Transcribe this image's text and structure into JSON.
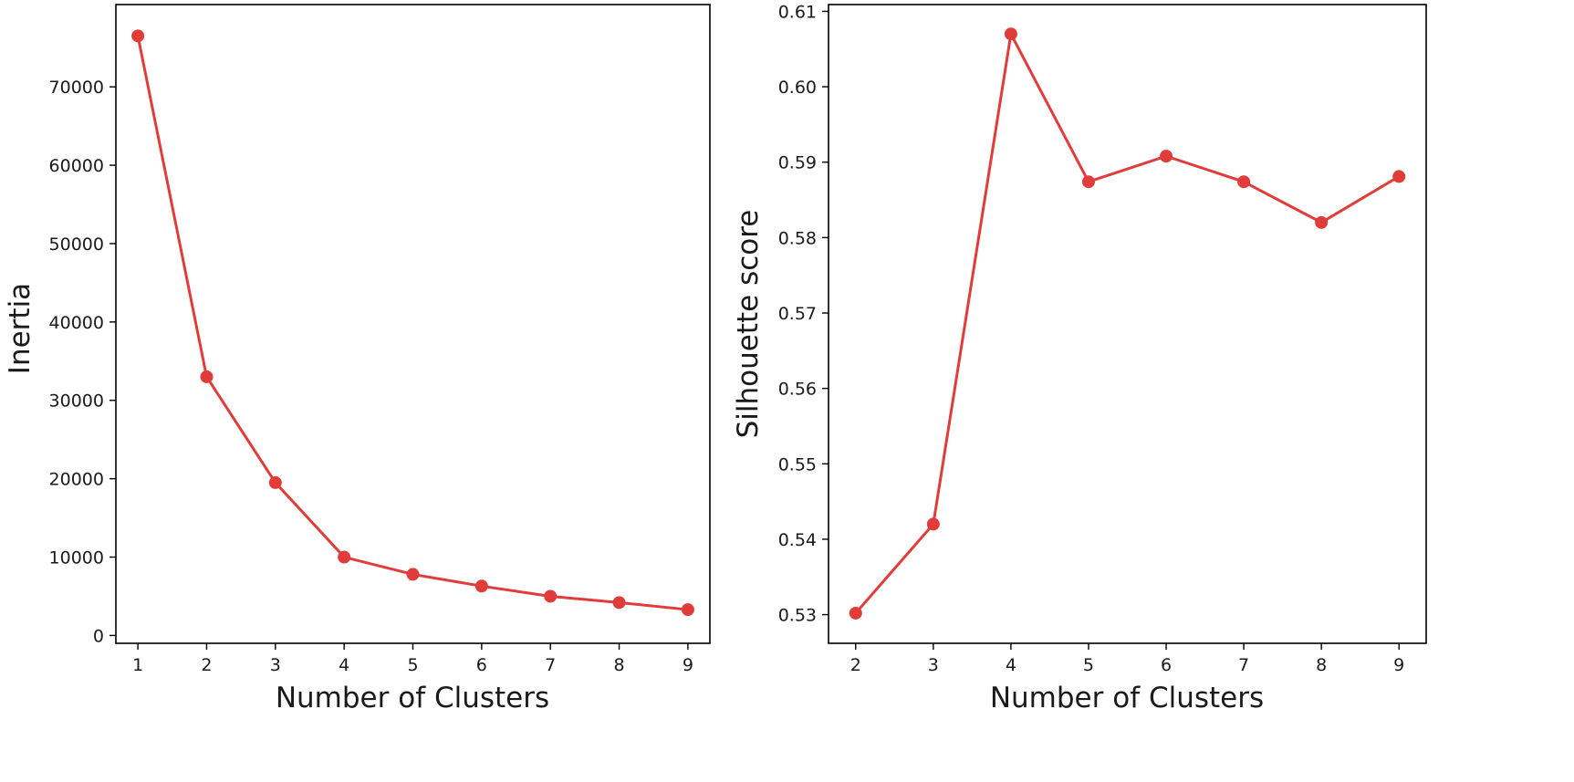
{
  "colors": {
    "series": "#e03c3a",
    "axis": "#000000",
    "text": "#1a1a1a"
  },
  "chart_data": [
    {
      "type": "line",
      "title": "",
      "xlabel": "Number of Clusters",
      "ylabel": "Inertia",
      "x": [
        1,
        2,
        3,
        4,
        5,
        6,
        7,
        8,
        9
      ],
      "series": [
        {
          "values": [
            76500,
            33000,
            19500,
            10000,
            7800,
            6300,
            5000,
            4200,
            3300
          ]
        }
      ],
      "xlim": [
        0.68,
        9.32
      ],
      "ylim": [
        -1000,
        80500
      ],
      "xticks": [
        1,
        2,
        3,
        4,
        5,
        6,
        7,
        8,
        9
      ],
      "yticks": [
        0,
        10000,
        20000,
        30000,
        40000,
        50000,
        60000,
        70000
      ],
      "grid": false,
      "marker": "circle"
    },
    {
      "type": "line",
      "title": "",
      "xlabel": "Number of Clusters",
      "ylabel": "Silhouette score",
      "x": [
        2,
        3,
        4,
        5,
        6,
        7,
        8,
        9
      ],
      "series": [
        {
          "values": [
            0.5302,
            0.542,
            0.607,
            0.5874,
            0.5908,
            0.5874,
            0.582,
            0.5881
          ]
        }
      ],
      "xlim": [
        1.65,
        9.35
      ],
      "ylim": [
        0.5262,
        0.6109
      ],
      "xticks": [
        2,
        3,
        4,
        5,
        6,
        7,
        8,
        9
      ],
      "yticks": [
        0.53,
        0.54,
        0.55,
        0.56,
        0.57,
        0.58,
        0.59,
        0.6,
        0.61
      ],
      "ytick_labels": [
        "0.53",
        "0.54",
        "0.55",
        "0.56",
        "0.57",
        "0.58",
        "0.59",
        "0.60",
        "0.61"
      ],
      "grid": false,
      "marker": "circle"
    }
  ]
}
